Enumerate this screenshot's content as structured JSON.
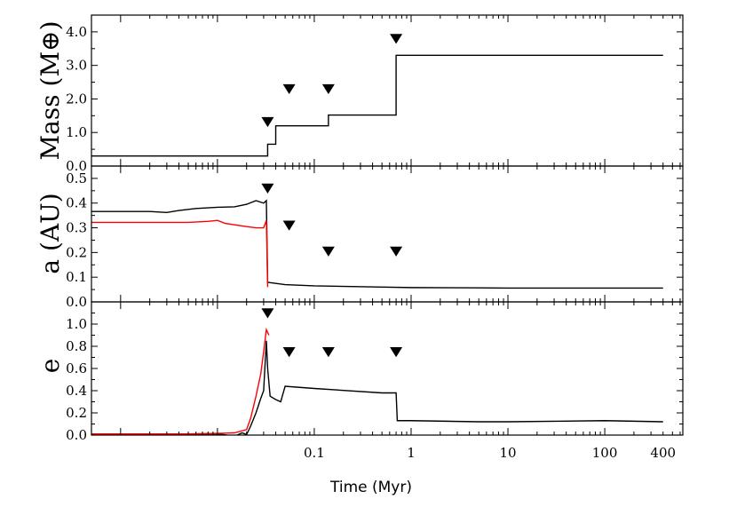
{
  "chart_data": {
    "type": "line",
    "x_scale": "log",
    "x_range": [
      0.0005,
      640
    ],
    "xlabel": "Time (Myr)",
    "x_ticks": [
      {
        "value": 0.1,
        "label": "0.1"
      },
      {
        "value": 1,
        "label": "1"
      },
      {
        "value": 10,
        "label": "10"
      },
      {
        "value": 100,
        "label": "100"
      },
      {
        "value": 400,
        "label": "400"
      }
    ],
    "markers_note": "▼",
    "panels": [
      {
        "id": "mass",
        "ylabel": "Mass (M⊕)",
        "ylim": [
          0,
          4.5
        ],
        "y_ticks": [
          {
            "value": 0.0,
            "label": "0.0"
          },
          {
            "value": 1.0,
            "label": "1.0"
          },
          {
            "value": 2.0,
            "label": "2.0"
          },
          {
            "value": 3.0,
            "label": "3.0"
          },
          {
            "value": 4.0,
            "label": "4.0"
          }
        ],
        "series": [
          {
            "color": "#000000",
            "step": true,
            "x": [
              0.0005,
              0.033,
              0.04,
              0.05,
              0.14,
              0.7,
              400
            ],
            "y": [
              0.3,
              0.65,
              1.2,
              1.2,
              1.52,
              3.3,
              3.3
            ]
          }
        ],
        "markers": [
          {
            "x": 0.033,
            "y": 1.32
          },
          {
            "x": 0.055,
            "y": 2.3
          },
          {
            "x": 0.14,
            "y": 2.3
          },
          {
            "x": 0.7,
            "y": 3.8
          }
        ]
      },
      {
        "id": "semimajor",
        "ylabel": "a (AU)",
        "ylim": [
          0,
          0.55
        ],
        "y_ticks": [
          {
            "value": 0.0,
            "label": "0.0"
          },
          {
            "value": 0.1,
            "label": "0.1"
          },
          {
            "value": 0.2,
            "label": "0.2"
          },
          {
            "value": 0.3,
            "label": "0.3"
          },
          {
            "value": 0.4,
            "label": "0.4"
          },
          {
            "value": 0.5,
            "label": "0.5"
          }
        ],
        "series": [
          {
            "color": "#000000",
            "x": [
              0.0005,
              0.002,
              0.003,
              0.004,
              0.006,
              0.01,
              0.015,
              0.02,
              0.025,
              0.03,
              0.032,
              0.033,
              0.035,
              0.05,
              0.1,
              0.5,
              1,
              5,
              10,
              100,
              400
            ],
            "y": [
              0.366,
              0.366,
              0.362,
              0.37,
              0.378,
              0.383,
              0.385,
              0.395,
              0.41,
              0.4,
              0.41,
              0.08,
              0.078,
              0.07,
              0.065,
              0.06,
              0.058,
              0.057,
              0.056,
              0.056,
              0.056
            ]
          },
          {
            "color": "#ff0000",
            "x": [
              0.0005,
              0.005,
              0.008,
              0.01,
              0.012,
              0.015,
              0.02,
              0.025,
              0.03,
              0.032,
              0.033
            ],
            "y": [
              0.322,
              0.322,
              0.326,
              0.33,
              0.318,
              0.312,
              0.305,
              0.3,
              0.3,
              0.33,
              0.06
            ]
          }
        ],
        "markers": [
          {
            "x": 0.033,
            "y": 0.46
          },
          {
            "x": 0.055,
            "y": 0.31
          },
          {
            "x": 0.14,
            "y": 0.205
          },
          {
            "x": 0.7,
            "y": 0.205
          }
        ]
      },
      {
        "id": "eccentricity",
        "ylabel": "e",
        "ylim": [
          0,
          1.2
        ],
        "y_ticks": [
          {
            "value": 0.0,
            "label": "0.0"
          },
          {
            "value": 0.2,
            "label": "0.2"
          },
          {
            "value": 0.4,
            "label": "0.4"
          },
          {
            "value": 0.6,
            "label": "0.6"
          },
          {
            "value": 0.8,
            "label": "0.8"
          },
          {
            "value": 1.0,
            "label": "1.0"
          }
        ],
        "series": [
          {
            "color": "#000000",
            "x": [
              0.0005,
              0.005,
              0.01,
              0.015,
              0.018,
              0.02,
              0.022,
              0.025,
              0.028,
              0.03,
              0.032,
              0.033,
              0.035,
              0.04,
              0.045,
              0.05,
              0.1,
              0.5,
              0.7,
              0.72,
              1,
              5,
              10,
              100,
              400
            ],
            "y": [
              0.01,
              0.01,
              0.012,
              -0.01,
              0.02,
              0.005,
              0.08,
              0.2,
              0.33,
              0.4,
              0.85,
              0.6,
              0.35,
              0.32,
              0.3,
              0.44,
              0.42,
              0.38,
              0.38,
              0.13,
              0.13,
              0.12,
              0.12,
              0.13,
              0.12
            ]
          },
          {
            "color": "#ff0000",
            "x": [
              0.0005,
              0.005,
              0.01,
              0.015,
              0.02,
              0.022,
              0.025,
              0.028,
              0.03,
              0.032,
              0.034
            ],
            "y": [
              0.01,
              0.01,
              0.015,
              0.02,
              0.05,
              0.15,
              0.35,
              0.55,
              0.75,
              0.95,
              0.9
            ]
          }
        ],
        "markers": [
          {
            "x": 0.033,
            "y": 1.1
          },
          {
            "x": 0.055,
            "y": 0.75
          },
          {
            "x": 0.14,
            "y": 0.75
          },
          {
            "x": 0.7,
            "y": 0.75
          }
        ]
      }
    ]
  }
}
